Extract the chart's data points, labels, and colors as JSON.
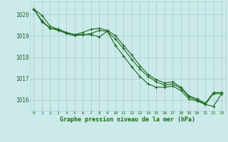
{
  "bg_color": "#cceaea",
  "grid_color": "#aad4d4",
  "line_color": "#1a6b1a",
  "xlabel": "Graphe pression niveau de la mer (hPa)",
  "xlim": [
    -0.5,
    23.5
  ],
  "ylim": [
    1015.5,
    1020.6
  ],
  "yticks": [
    1016,
    1017,
    1018,
    1019,
    1020
  ],
  "xticks": [
    0,
    1,
    2,
    3,
    4,
    5,
    6,
    7,
    8,
    9,
    10,
    11,
    12,
    13,
    14,
    15,
    16,
    17,
    18,
    19,
    20,
    21,
    22,
    23
  ],
  "line1_x": [
    0,
    1,
    2,
    3,
    4,
    5,
    6,
    7,
    8,
    9,
    10,
    11,
    12,
    13,
    14,
    15,
    16,
    17,
    18,
    19,
    20,
    21,
    22,
    23
  ],
  "line1_y": [
    1020.25,
    1019.65,
    1019.35,
    1019.25,
    1019.1,
    1019.0,
    1019.05,
    1019.1,
    1019.25,
    1019.2,
    1018.85,
    1018.4,
    1017.9,
    1017.45,
    1017.1,
    1016.85,
    1016.7,
    1016.75,
    1016.55,
    1016.15,
    1016.0,
    1015.8,
    1016.3,
    1016.3
  ],
  "line2_x": [
    0,
    1,
    2,
    3,
    4,
    5,
    6,
    7,
    8,
    9,
    10,
    11,
    12,
    13,
    14,
    15,
    16,
    17,
    18,
    19,
    20,
    21,
    22,
    23
  ],
  "line2_y": [
    1020.25,
    1019.7,
    1019.35,
    1019.3,
    1019.15,
    1019.05,
    1019.15,
    1019.3,
    1019.35,
    1019.25,
    1019.0,
    1018.55,
    1018.1,
    1017.6,
    1017.2,
    1016.95,
    1016.8,
    1016.85,
    1016.6,
    1016.2,
    1016.05,
    1015.85,
    1016.35,
    1016.35
  ],
  "line3_x": [
    0,
    1,
    2,
    3,
    4,
    5,
    6,
    7,
    8,
    9,
    10,
    11,
    12,
    13,
    14,
    15,
    16,
    17,
    18,
    19,
    20,
    21,
    22,
    23
  ],
  "line3_y": [
    1020.25,
    1019.95,
    1019.45,
    1019.3,
    1019.15,
    1019.05,
    1019.05,
    1019.05,
    1018.95,
    1019.2,
    1018.55,
    1018.05,
    1017.55,
    1017.1,
    1016.75,
    1016.6,
    1016.6,
    1016.65,
    1016.45,
    1016.05,
    1015.95,
    1015.8,
    1015.7,
    1016.3
  ]
}
